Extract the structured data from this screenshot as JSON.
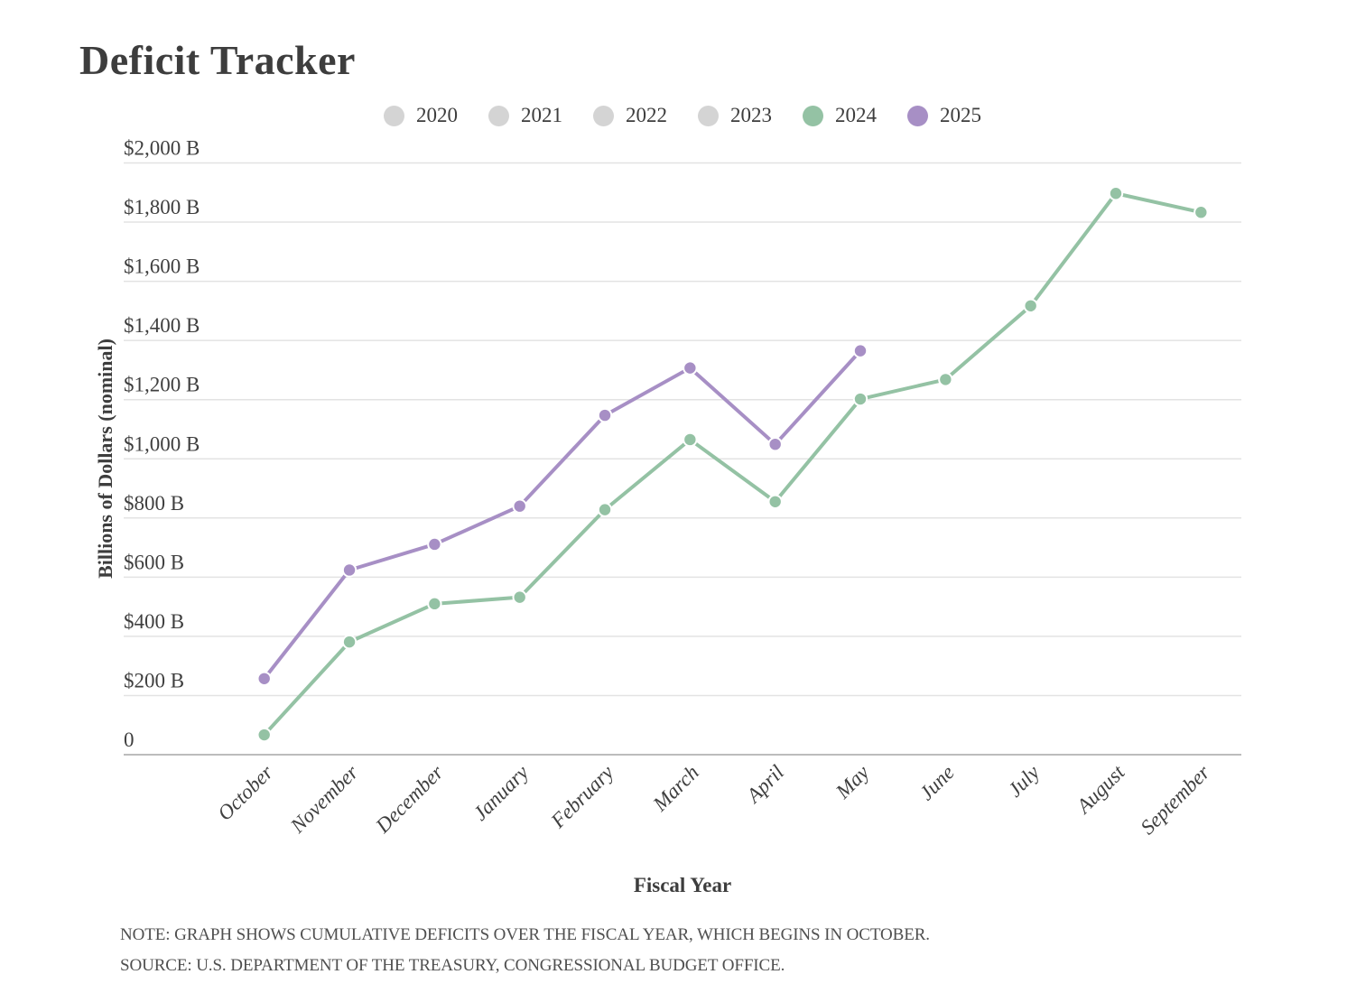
{
  "title": "Deficit Tracker",
  "legend": {
    "items": [
      {
        "label": "2020",
        "color": "#d4d4d4",
        "active": false
      },
      {
        "label": "2021",
        "color": "#d4d4d4",
        "active": false
      },
      {
        "label": "2022",
        "color": "#d4d4d4",
        "active": false
      },
      {
        "label": "2023",
        "color": "#d4d4d4",
        "active": false
      },
      {
        "label": "2024",
        "color": "#94c2a4",
        "active": true
      },
      {
        "label": "2025",
        "color": "#a78fc5",
        "active": true
      }
    ]
  },
  "chart_data": {
    "type": "line",
    "title": "Deficit Tracker",
    "xlabel": "Fiscal Year",
    "ylabel": "Billions of Dollars (nominal)",
    "categories": [
      "October",
      "November",
      "December",
      "January",
      "February",
      "March",
      "April",
      "May",
      "June",
      "July",
      "August",
      "September"
    ],
    "series": [
      {
        "name": "2024",
        "color": "#94c2a4",
        "values": [
          67,
          381,
          510,
          532,
          828,
          1065,
          855,
          1202,
          1268,
          1517,
          1897,
          1833
        ]
      },
      {
        "name": "2025",
        "color": "#a78fc5",
        "values": [
          257,
          624,
          711,
          840,
          1147,
          1307,
          1049,
          1365
        ]
      }
    ],
    "yticks": [
      {
        "label": "$2,000 B",
        "value": 2000
      },
      {
        "label": "$1,800 B",
        "value": 1800
      },
      {
        "label": "$1,600 B",
        "value": 1600
      },
      {
        "label": "$1,400 B",
        "value": 1400
      },
      {
        "label": "$1,200 B",
        "value": 1200
      },
      {
        "label": "$1,000 B",
        "value": 1000
      },
      {
        "label": "$800 B",
        "value": 800
      },
      {
        "label": "$600 B",
        "value": 600
      },
      {
        "label": "$400 B",
        "value": 400
      },
      {
        "label": "$200 B",
        "value": 200
      },
      {
        "label": "0",
        "value": 0
      }
    ],
    "ylim": [
      0,
      2000
    ],
    "grid": true,
    "legend_position": "top"
  },
  "notes": {
    "note": "NOTE: GRAPH SHOWS CUMULATIVE DEFICITS OVER THE FISCAL YEAR, WHICH BEGINS IN OCTOBER.",
    "source": "SOURCE: U.S. DEPARTMENT OF THE TREASURY, CONGRESSIONAL BUDGET OFFICE."
  }
}
